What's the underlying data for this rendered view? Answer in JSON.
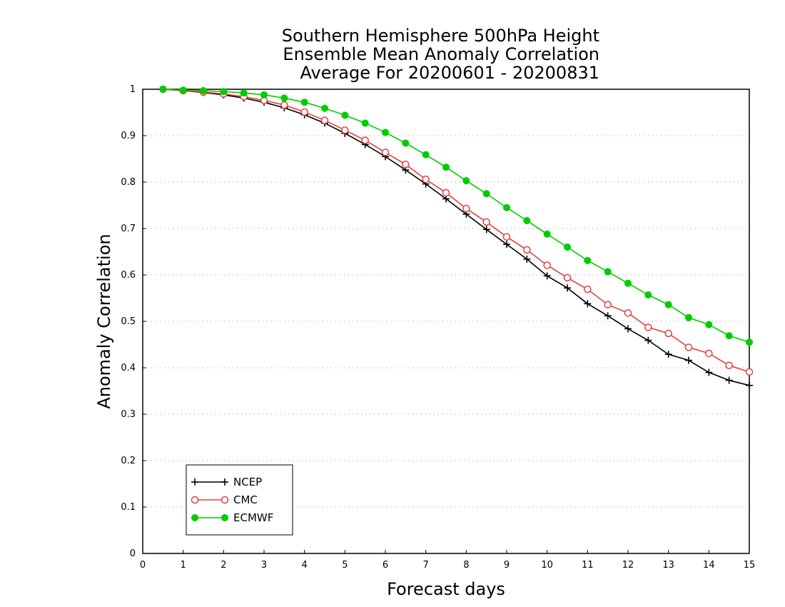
{
  "chart_data": {
    "type": "line",
    "title": [
      "Southern Hemisphere 500hPa Height",
      "Ensemble Mean Anomaly Correlation",
      "Average For 20200601 - 20200831"
    ],
    "xlabel": "Forecast days",
    "ylabel": "Anomaly Correlation",
    "xlim": [
      0,
      15
    ],
    "ylim": [
      0,
      1
    ],
    "xticks": [
      "0",
      "1",
      "2",
      "3",
      "4",
      "5",
      "6",
      "7",
      "8",
      "9",
      "10",
      "11",
      "12",
      "13",
      "14",
      "15"
    ],
    "yticks": [
      "0",
      "0.1",
      "0.2",
      "0.3",
      "0.4",
      "0.5",
      "0.6",
      "0.7",
      "0.8",
      "0.9",
      "1"
    ],
    "grid": "horizontal dotted",
    "legend_position": "bottom-left",
    "x": [
      0.5,
      1,
      1.5,
      2,
      2.5,
      3,
      3.5,
      4,
      4.5,
      5,
      5.5,
      6,
      6.5,
      7,
      7.5,
      8,
      8.5,
      9,
      9.5,
      10,
      10.5,
      11,
      11.5,
      12,
      12.5,
      13,
      13.5,
      14,
      14.5,
      15
    ],
    "series": [
      {
        "name": "NCEP",
        "color": "#000000",
        "marker": "plus",
        "values": [
          1.0,
          0.997,
          0.993,
          0.988,
          0.981,
          0.972,
          0.96,
          0.945,
          0.927,
          0.905,
          0.881,
          0.855,
          0.826,
          0.796,
          0.764,
          0.731,
          0.698,
          0.666,
          0.634,
          0.598,
          0.572,
          0.538,
          0.512,
          0.484,
          0.459,
          0.429,
          0.416,
          0.39,
          0.373,
          0.362
        ]
      },
      {
        "name": "CMC",
        "color": "#e04040",
        "marker": "open-circle",
        "values": [
          1.0,
          0.997,
          0.994,
          0.99,
          0.984,
          0.976,
          0.966,
          0.951,
          0.933,
          0.912,
          0.89,
          0.864,
          0.838,
          0.806,
          0.777,
          0.743,
          0.714,
          0.682,
          0.654,
          0.621,
          0.594,
          0.569,
          0.536,
          0.518,
          0.487,
          0.474,
          0.444,
          0.431,
          0.405,
          0.391
        ]
      },
      {
        "name": "ECMWF",
        "color": "#00cc00",
        "marker": "filled-circle",
        "values": [
          1.0,
          0.998,
          0.997,
          0.995,
          0.992,
          0.988,
          0.981,
          0.972,
          0.959,
          0.944,
          0.927,
          0.907,
          0.884,
          0.859,
          0.832,
          0.803,
          0.775,
          0.745,
          0.717,
          0.688,
          0.66,
          0.631,
          0.607,
          0.582,
          0.557,
          0.536,
          0.508,
          0.493,
          0.469,
          0.455
        ]
      }
    ]
  }
}
